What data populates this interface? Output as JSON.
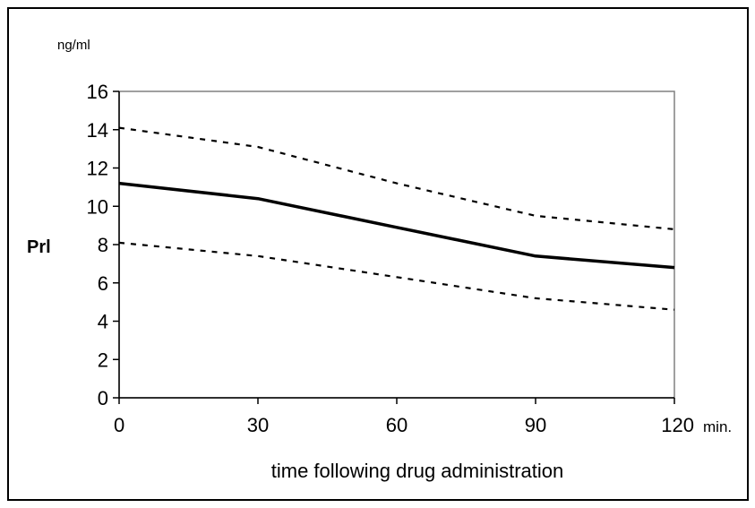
{
  "chart_data": {
    "type": "line",
    "ylabel": "Prl",
    "y_unit": "ng/ml",
    "xlabel": "time following drug administration",
    "x_unit": "min.",
    "x": [
      0,
      30,
      60,
      90,
      120
    ],
    "x_tick_labels": [
      "0",
      "30",
      "60",
      "90",
      "120"
    ],
    "y_tick_labels": [
      "0",
      "2",
      "4",
      "6",
      "8",
      "10",
      "12",
      "14",
      "16"
    ],
    "xlim": [
      0,
      120
    ],
    "ylim": [
      0,
      16
    ],
    "grid": false,
    "legend": "none",
    "series": [
      {
        "style": "solid",
        "values": [
          11.2,
          10.4,
          8.9,
          7.4,
          6.8
        ]
      },
      {
        "style": "dashed",
        "values": [
          14.1,
          13.1,
          11.2,
          9.5,
          8.8
        ]
      },
      {
        "style": "dashed",
        "values": [
          8.1,
          7.4,
          6.3,
          5.2,
          4.6
        ]
      }
    ],
    "colors": {
      "series": "#000000",
      "plot_border": "#808080",
      "axis": "#000000"
    }
  }
}
